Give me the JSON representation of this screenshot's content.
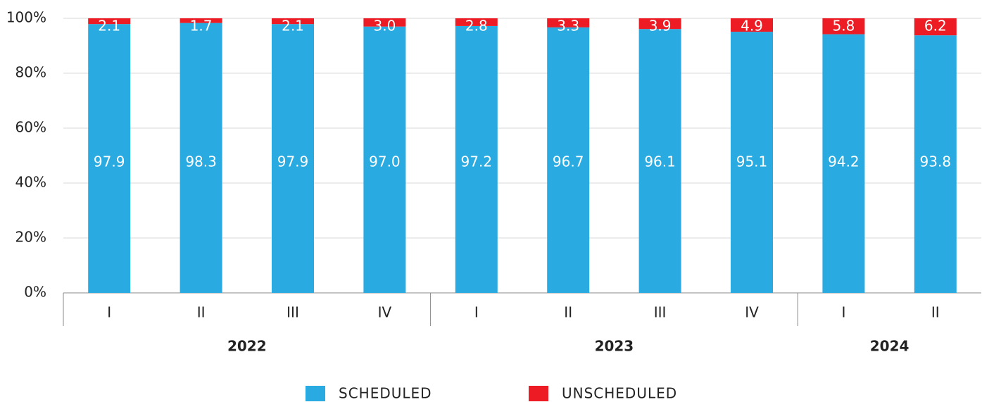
{
  "chart_data": {
    "type": "stacked_bar",
    "groups": [
      {
        "name": "2022",
        "categories": [
          "I",
          "II",
          "III",
          "IV"
        ]
      },
      {
        "name": "2023",
        "categories": [
          "I",
          "II",
          "III",
          "IV"
        ]
      },
      {
        "name": "2024",
        "categories": [
          "I",
          "II"
        ]
      }
    ],
    "series": [
      {
        "name": "SCHEDULED",
        "color": "#29abe2",
        "values": [
          97.9,
          98.3,
          97.9,
          97.0,
          97.2,
          96.7,
          96.1,
          95.1,
          94.2,
          93.8
        ],
        "value_labels": [
          "97.9",
          "98.3",
          "97.9",
          "97.0",
          "97.2",
          "96.7",
          "96.1",
          "95.1",
          "94.2",
          "93.8"
        ]
      },
      {
        "name": "UNSCHEDULED",
        "color": "#ed1c24",
        "values": [
          2.1,
          1.7,
          2.1,
          3.0,
          2.8,
          3.3,
          3.9,
          4.9,
          5.8,
          6.2
        ],
        "value_labels": [
          "2.1",
          "1.7",
          "2.1",
          "3.0",
          "2.8",
          "3.3",
          "3.9",
          "4.9",
          "5.8",
          "6.2"
        ]
      }
    ],
    "ylim": [
      0,
      100
    ],
    "yticks": [
      {
        "value": 0,
        "label": "0%"
      },
      {
        "value": 20,
        "label": "20%"
      },
      {
        "value": 40,
        "label": "40%"
      },
      {
        "value": 60,
        "label": "60%"
      },
      {
        "value": 80,
        "label": "80%"
      },
      {
        "value": 100,
        "label": "100%"
      }
    ],
    "grid": true
  }
}
